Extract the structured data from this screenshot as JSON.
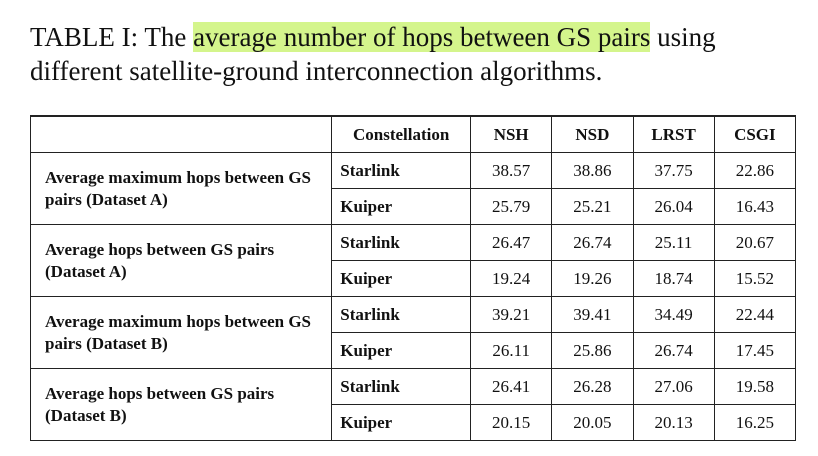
{
  "caption": {
    "prefix": "TABLE I: The ",
    "highlight": "average number of hops between GS pairs",
    "suffix": " using different satellite-ground interconnection algorithms."
  },
  "table": {
    "header": [
      "Constellation",
      "NSH",
      "NSD",
      "LRST",
      "CSGI"
    ],
    "groups": [
      {
        "label": "Average maximum hops between GS pairs (Dataset A)",
        "rows": [
          [
            "Starlink",
            38.57,
            38.86,
            37.75,
            22.86
          ],
          [
            "Kuiper",
            25.79,
            25.21,
            26.04,
            16.43
          ]
        ]
      },
      {
        "label": "Average hops between GS pairs (Dataset A)",
        "rows": [
          [
            "Starlink",
            26.47,
            26.74,
            25.11,
            20.67
          ],
          [
            "Kuiper",
            19.24,
            19.26,
            18.74,
            15.52
          ]
        ]
      },
      {
        "label": "Average maximum hops between GS pairs (Dataset B)",
        "rows": [
          [
            "Starlink",
            39.21,
            39.41,
            34.49,
            22.44
          ],
          [
            "Kuiper",
            26.11,
            25.86,
            26.74,
            17.45
          ]
        ]
      },
      {
        "label": "Average hops between GS pairs (Dataset B)",
        "rows": [
          [
            "Starlink",
            26.41,
            26.28,
            27.06,
            19.58
          ],
          [
            "Kuiper",
            20.15,
            20.05,
            20.13,
            16.25
          ]
        ]
      }
    ]
  }
}
